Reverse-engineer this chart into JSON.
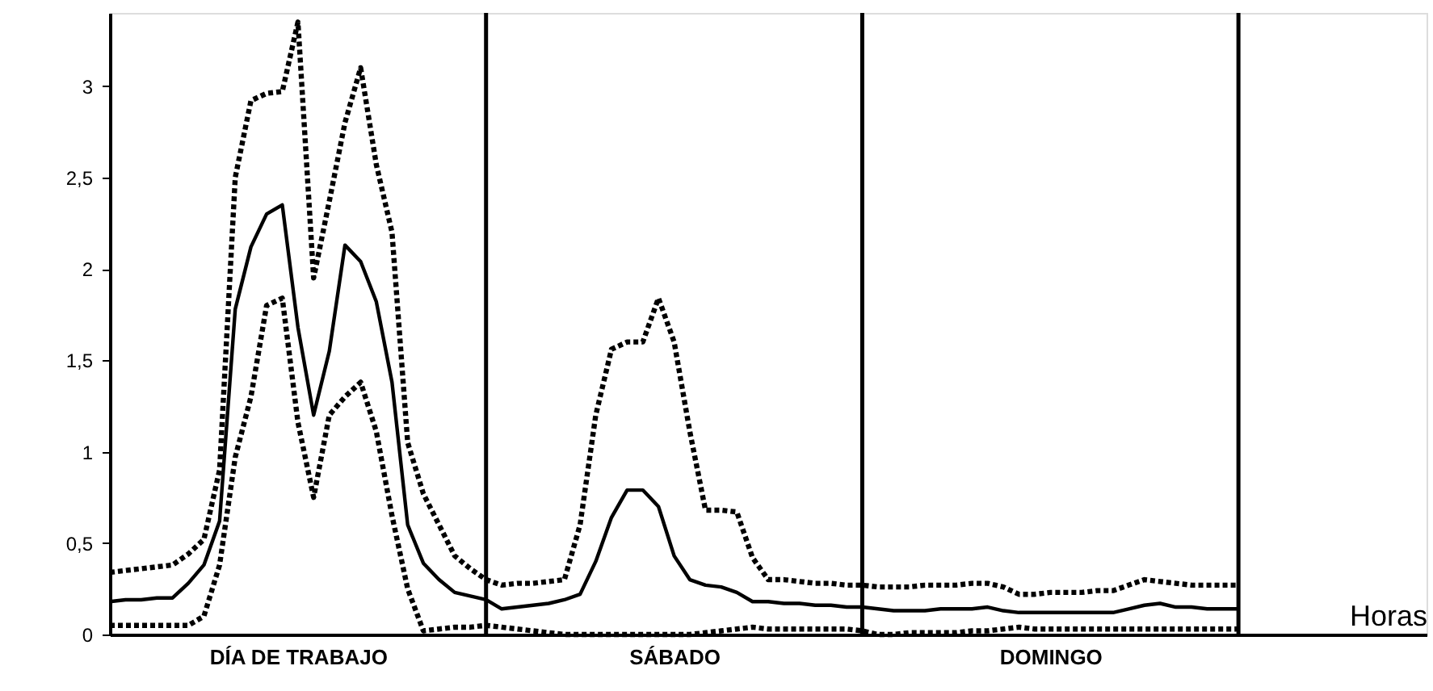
{
  "chart_data": {
    "type": "line",
    "xlabel": "Horas",
    "ylim": [
      0,
      3.4
    ],
    "categories": [
      null,
      null,
      null,
      null,
      null,
      null,
      null,
      null,
      null,
      null,
      null,
      null,
      "DÍA DE TRABAJO",
      null,
      null,
      null,
      null,
      null,
      null,
      null,
      null,
      null,
      null,
      null,
      null,
      null,
      null,
      null,
      null,
      null,
      null,
      null,
      null,
      null,
      null,
      null,
      "SÁBADO",
      null,
      null,
      null,
      null,
      null,
      null,
      null,
      null,
      null,
      null,
      null,
      null,
      null,
      null,
      null,
      null,
      null,
      null,
      null,
      null,
      null,
      null,
      null,
      "DOMINGO",
      null,
      null,
      null,
      null,
      null,
      null,
      null,
      null,
      null,
      null,
      null,
      null,
      null,
      null,
      null,
      null,
      null,
      null,
      null,
      null,
      null,
      null,
      null,
      null
    ],
    "yticks": [
      0,
      {
        "value": 0.5,
        "label": "0,5"
      },
      1,
      {
        "value": 1.5,
        "label": "1,5"
      },
      2,
      {
        "value": 2.5,
        "label": "2,5"
      },
      3
    ],
    "grid": false,
    "marker": "none",
    "series": [
      {
        "color": "#000000",
        "line_style": "solid",
        "values": [
          0.18,
          0.19,
          0.19,
          0.2,
          0.2,
          0.28,
          0.38,
          0.62,
          1.78,
          2.12,
          2.3,
          2.35,
          1.68,
          1.2,
          1.55,
          2.13,
          2.04,
          1.82,
          1.38,
          0.6,
          0.39,
          0.3,
          0.23,
          0.21,
          0.19,
          0.14,
          0.15,
          0.16,
          0.17,
          0.19,
          0.22,
          0.4,
          0.64,
          0.79,
          0.79,
          0.7,
          0.43,
          0.3,
          0.27,
          0.26,
          0.23,
          0.18,
          0.18,
          0.17,
          0.17,
          0.16,
          0.16,
          0.15,
          0.15,
          0.14,
          0.13,
          0.13,
          0.13,
          0.14,
          0.14,
          0.14,
          0.15,
          0.13,
          0.12,
          0.12,
          0.12,
          0.12,
          0.12,
          0.12,
          0.12,
          0.14,
          0.16,
          0.17,
          0.15,
          0.15,
          0.14,
          0.14,
          0.14,
          null,
          null,
          null,
          null,
          null,
          null,
          null,
          null,
          null,
          null,
          null,
          null
        ]
      },
      {
        "color": "#000000",
        "line_style": "dotted",
        "values": [
          0.34,
          0.35,
          0.36,
          0.37,
          0.38,
          0.44,
          0.52,
          0.9,
          2.5,
          2.92,
          2.96,
          2.97,
          3.35,
          1.95,
          2.37,
          2.8,
          3.1,
          2.57,
          2.2,
          1.05,
          0.77,
          0.6,
          0.43,
          0.36,
          0.3,
          0.27,
          0.28,
          0.28,
          0.29,
          0.3,
          0.6,
          1.2,
          1.56,
          1.6,
          1.6,
          1.84,
          1.6,
          1.11,
          0.68,
          0.68,
          0.67,
          0.42,
          0.3,
          0.3,
          0.29,
          0.28,
          0.28,
          0.27,
          0.27,
          0.26,
          0.26,
          0.26,
          0.27,
          0.27,
          0.27,
          0.28,
          0.28,
          0.26,
          0.22,
          0.22,
          0.23,
          0.23,
          0.23,
          0.24,
          0.24,
          0.27,
          0.3,
          0.29,
          0.28,
          0.27,
          0.27,
          0.27,
          0.27,
          null,
          null,
          null,
          null,
          null,
          null,
          null,
          null,
          null,
          null,
          null,
          null
        ]
      },
      {
        "color": "#000000",
        "line_style": "dotted",
        "values": [
          0.05,
          0.05,
          0.05,
          0.05,
          0.05,
          0.05,
          0.1,
          0.38,
          0.97,
          1.3,
          1.8,
          1.84,
          1.16,
          0.75,
          1.2,
          1.3,
          1.38,
          1.11,
          0.65,
          0.25,
          0.02,
          0.03,
          0.04,
          0.04,
          0.05,
          0.04,
          0.03,
          0.02,
          0.01,
          0,
          0,
          0,
          0,
          0,
          0,
          0,
          0,
          0,
          0.01,
          0.02,
          0.03,
          0.04,
          0.03,
          0.03,
          0.03,
          0.03,
          0.03,
          0.03,
          0.02,
          0,
          0,
          0.01,
          0.01,
          0.01,
          0.01,
          0.02,
          0.02,
          0.03,
          0.04,
          0.03,
          0.03,
          0.03,
          0.03,
          0.03,
          0.03,
          0.03,
          0.03,
          0.03,
          0.03,
          0.03,
          0.03,
          0.03,
          0.03,
          null,
          null,
          null,
          null,
          null,
          null,
          null,
          null,
          null,
          null,
          null,
          null
        ]
      }
    ]
  }
}
